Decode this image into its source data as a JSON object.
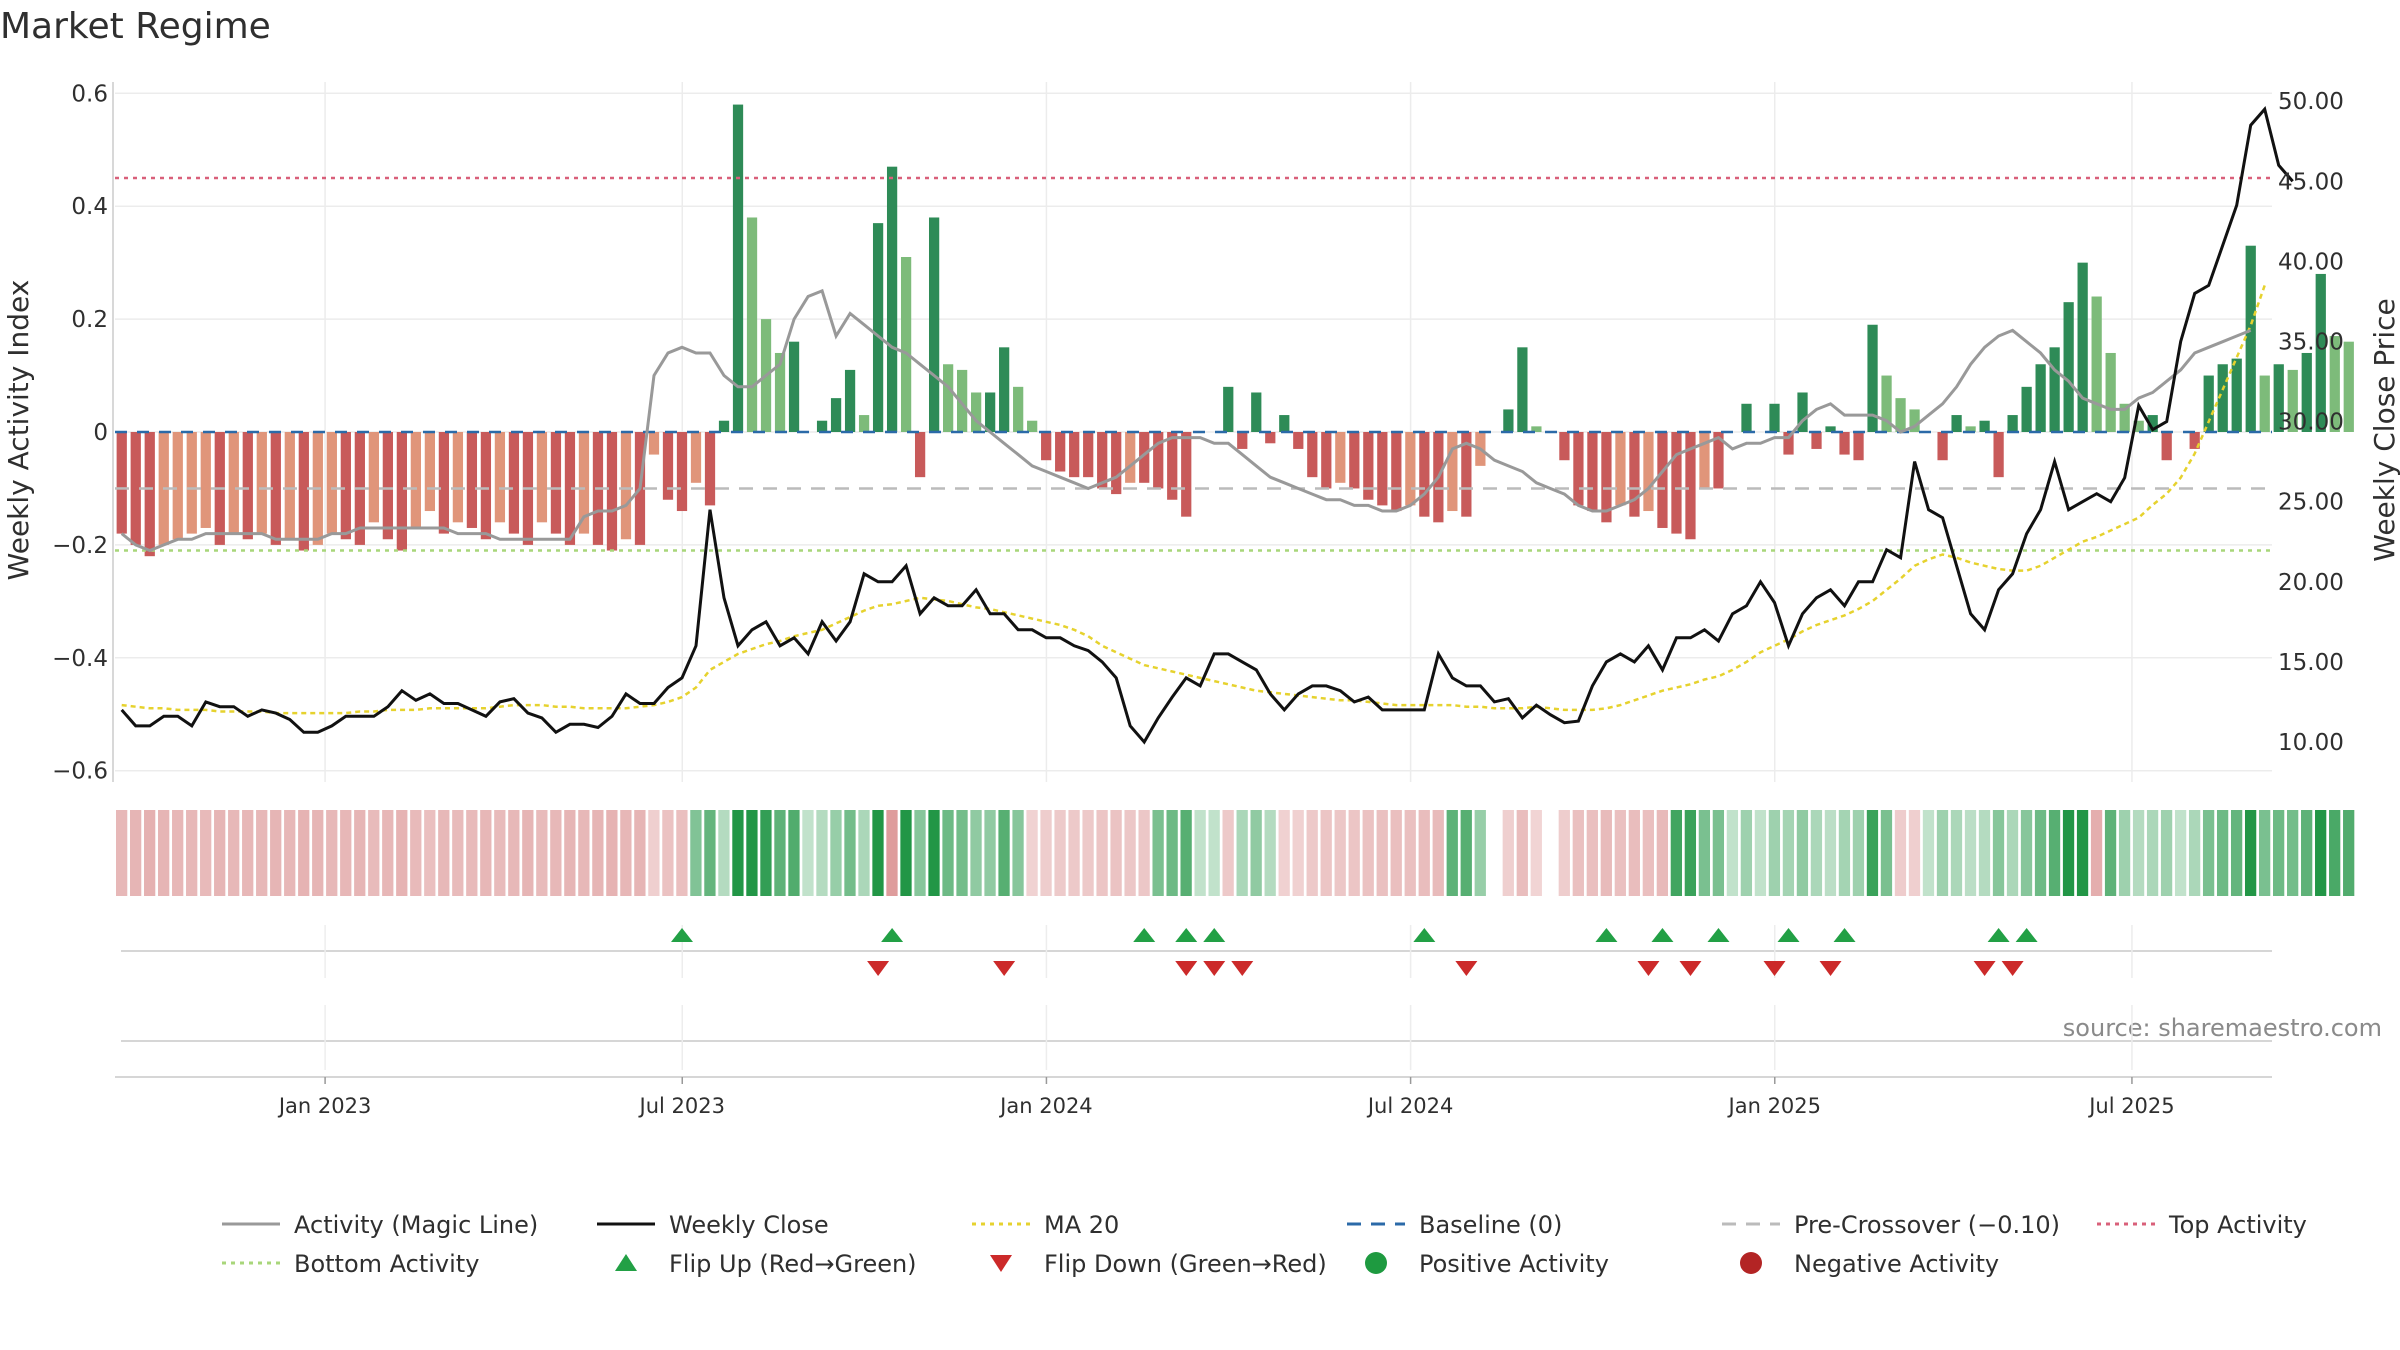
{
  "title": "Market Regime",
  "source": "source: sharemaestro.com",
  "colors": {
    "strong_pos": "#2e8b57",
    "weak_pos": "#7dbb7a",
    "strong_neg": "#c85a5a",
    "weak_neg": "#e0957a",
    "magic_line": "#999999",
    "weekly_close": "#111111",
    "ma20": "#e6d22e",
    "baseline": "#2b6aa8",
    "pre_crossover": "#bbbbbb",
    "top_activity": "#d9607a",
    "bottom_activity": "#a8d67a",
    "flip_up": "#22a045",
    "flip_down": "#cc2a2a"
  },
  "chart_data": {
    "type": "bar",
    "xlabel": "",
    "ylabel": "Weekly Activity Index",
    "y2label": "Weekly Close Price",
    "ylim": [
      -0.62,
      0.62
    ],
    "y2lim": [
      7.5,
      51.2
    ],
    "yticks": [
      "0.6",
      "0.4",
      "0.2",
      "0",
      "−0.2",
      "−0.4",
      "−0.6"
    ],
    "ytick_values": [
      0.6,
      0.4,
      0.2,
      0,
      -0.2,
      -0.4,
      -0.6
    ],
    "y2ticks": [
      "50.00",
      "45.00",
      "40.00",
      "35.00",
      "30.00",
      "25.00",
      "20.00",
      "15.00",
      "10.00"
    ],
    "y2tick_values": [
      50,
      45,
      40,
      35,
      30,
      25,
      20,
      15,
      10
    ],
    "x_range_weeks": [
      0,
      154
    ],
    "xticks": [
      {
        "label": "Jan 2023",
        "week": 15
      },
      {
        "label": "Jul 2023",
        "week": 40.5
      },
      {
        "label": "Jan 2024",
        "week": 66.5
      },
      {
        "label": "Jul 2024",
        "week": 92.5
      },
      {
        "label": "Jan 2025",
        "week": 118.5
      },
      {
        "label": "Jul 2025",
        "week": 144
      }
    ],
    "reference_lines": [
      {
        "name": "Baseline (0)",
        "value": 0
      },
      {
        "name": "Pre-Crossover (−0.10)",
        "value": -0.1
      },
      {
        "name": "Top Activity",
        "value": 0.45
      },
      {
        "name": "Bottom Activity",
        "value": -0.21
      }
    ],
    "activity_index": [
      -0.18,
      -0.2,
      -0.22,
      -0.2,
      -0.19,
      -0.18,
      -0.17,
      -0.2,
      -0.18,
      -0.19,
      -0.18,
      -0.2,
      -0.19,
      -0.21,
      -0.2,
      -0.18,
      -0.19,
      -0.2,
      -0.16,
      -0.19,
      -0.21,
      -0.17,
      -0.14,
      -0.18,
      -0.16,
      -0.17,
      -0.19,
      -0.16,
      -0.18,
      -0.2,
      -0.16,
      -0.18,
      -0.2,
      -0.18,
      -0.2,
      -0.21,
      -0.19,
      -0.2,
      -0.04,
      -0.12,
      -0.14,
      -0.09,
      -0.13,
      0.02,
      0.58,
      0.38,
      0.2,
      0.14,
      0.16,
      0.0,
      0.02,
      0.06,
      0.11,
      0.03,
      0.37,
      0.47,
      0.31,
      -0.08,
      0.38,
      0.12,
      0.11,
      0.07,
      0.07,
      0.15,
      0.08,
      0.02,
      -0.05,
      -0.07,
      -0.08,
      -0.08,
      -0.1,
      -0.11,
      -0.09,
      -0.09,
      -0.1,
      -0.12,
      -0.15,
      0.0,
      0.0,
      0.08,
      -0.03,
      0.07,
      -0.02,
      0.03,
      -0.03,
      -0.08,
      -0.1,
      -0.09,
      -0.1,
      -0.12,
      -0.13,
      -0.14,
      -0.13,
      -0.15,
      -0.16,
      -0.14,
      -0.15,
      -0.06,
      0.0,
      0.04,
      0.15,
      0.01,
      0.0,
      -0.05,
      -0.13,
      -0.14,
      -0.16,
      -0.13,
      -0.15,
      -0.14,
      -0.17,
      -0.18,
      -0.19,
      -0.1,
      -0.1,
      0.0,
      0.05,
      0.0,
      0.05,
      -0.04,
      0.07,
      -0.03,
      0.01,
      -0.04,
      -0.05,
      0.19,
      0.1,
      0.06,
      0.04,
      0.0,
      -0.05,
      0.03,
      0.01,
      0.02,
      -0.08,
      0.03,
      0.08,
      0.12,
      0.15,
      0.23,
      0.3,
      0.24,
      0.14,
      0.05,
      0.02,
      0.03,
      -0.05,
      0.0,
      -0.03,
      0.1,
      0.12,
      0.13,
      0.33,
      0.1,
      0.12,
      0.11,
      0.14,
      0.28,
      0.17,
      0.16
    ],
    "magic_line": [
      -0.18,
      -0.2,
      -0.21,
      -0.2,
      -0.19,
      -0.19,
      -0.18,
      -0.18,
      -0.18,
      -0.18,
      -0.18,
      -0.19,
      -0.19,
      -0.19,
      -0.19,
      -0.18,
      -0.18,
      -0.17,
      -0.17,
      -0.17,
      -0.17,
      -0.17,
      -0.17,
      -0.17,
      -0.18,
      -0.18,
      -0.18,
      -0.19,
      -0.19,
      -0.19,
      -0.19,
      -0.19,
      -0.19,
      -0.15,
      -0.14,
      -0.14,
      -0.13,
      -0.1,
      0.1,
      0.14,
      0.15,
      0.14,
      0.14,
      0.1,
      0.08,
      0.08,
      0.1,
      0.12,
      0.2,
      0.24,
      0.25,
      0.17,
      0.21,
      0.19,
      0.17,
      0.15,
      0.14,
      0.12,
      0.1,
      0.08,
      0.05,
      0.02,
      0.0,
      -0.02,
      -0.04,
      -0.06,
      -0.07,
      -0.08,
      -0.09,
      -0.1,
      -0.09,
      -0.08,
      -0.06,
      -0.04,
      -0.02,
      -0.01,
      -0.01,
      -0.01,
      -0.02,
      -0.02,
      -0.04,
      -0.06,
      -0.08,
      -0.09,
      -0.1,
      -0.11,
      -0.12,
      -0.12,
      -0.13,
      -0.13,
      -0.14,
      -0.14,
      -0.13,
      -0.11,
      -0.08,
      -0.03,
      -0.02,
      -0.03,
      -0.05,
      -0.06,
      -0.07,
      -0.09,
      -0.1,
      -0.11,
      -0.13,
      -0.14,
      -0.14,
      -0.13,
      -0.12,
      -0.1,
      -0.07,
      -0.04,
      -0.03,
      -0.02,
      -0.01,
      -0.03,
      -0.02,
      -0.02,
      -0.01,
      -0.01,
      0.02,
      0.04,
      0.05,
      0.03,
      0.03,
      0.03,
      0.02,
      0.0,
      0.01,
      0.03,
      0.05,
      0.08,
      0.12,
      0.15,
      0.17,
      0.18,
      0.16,
      0.14,
      0.11,
      0.09,
      0.06,
      0.05,
      0.04,
      0.04,
      0.06,
      0.07,
      0.09,
      0.11,
      0.14,
      0.15,
      0.16,
      0.17,
      0.18
    ],
    "weekly_close": [
      12.0,
      11.0,
      11.0,
      11.6,
      11.6,
      11.0,
      12.5,
      12.2,
      12.2,
      11.6,
      12.0,
      11.8,
      11.4,
      10.6,
      10.6,
      11.0,
      11.6,
      11.6,
      11.6,
      12.2,
      13.2,
      12.6,
      13.0,
      12.4,
      12.4,
      12.0,
      11.6,
      12.5,
      12.7,
      11.8,
      11.5,
      10.6,
      11.1,
      11.1,
      10.9,
      11.6,
      13.0,
      12.4,
      12.4,
      13.4,
      14.0,
      16.0,
      24.5,
      19.0,
      16.0,
      17.0,
      17.5,
      16.0,
      16.5,
      15.5,
      17.5,
      16.3,
      17.5,
      20.5,
      20.0,
      20.0,
      21.0,
      18.0,
      19.0,
      18.5,
      18.5,
      19.5,
      18.0,
      18.0,
      17.0,
      17.0,
      16.5,
      16.5,
      16.0,
      15.7,
      15.0,
      14.0,
      11.0,
      10.0,
      11.5,
      12.8,
      14.0,
      13.5,
      15.5,
      15.5,
      15.0,
      14.5,
      13.0,
      12.0,
      13.0,
      13.5,
      13.5,
      13.2,
      12.5,
      12.8,
      12.0,
      12.0,
      12.0,
      12.0,
      15.5,
      14.0,
      13.5,
      13.5,
      12.5,
      12.7,
      11.5,
      12.3,
      11.7,
      11.2,
      11.3,
      13.5,
      15.0,
      15.5,
      15.0,
      16.0,
      14.5,
      16.5,
      16.5,
      17.0,
      16.3,
      18.0,
      18.5,
      20.0,
      18.7,
      16.0,
      18.0,
      19.0,
      19.5,
      18.5,
      20.0,
      20.0,
      22.0,
      21.5,
      27.5,
      24.5,
      24.0,
      21.0,
      18.0,
      17.0,
      19.5,
      20.5,
      23.0,
      24.5,
      27.5,
      24.5,
      25.0,
      25.5,
      25.0,
      26.5,
      31.0,
      29.5,
      30.0,
      35.0,
      38.0,
      38.5,
      41.0,
      43.5,
      48.5,
      49.5,
      46.0,
      45.0
    ],
    "ma20": [
      12.3,
      12.2,
      12.1,
      12.1,
      12.0,
      12.0,
      12.0,
      11.9,
      11.9,
      11.9,
      11.9,
      11.8,
      11.8,
      11.8,
      11.8,
      11.8,
      11.8,
      11.9,
      11.9,
      12.0,
      12.0,
      12.0,
      12.1,
      12.1,
      12.1,
      12.1,
      12.1,
      12.2,
      12.3,
      12.3,
      12.3,
      12.2,
      12.2,
      12.1,
      12.1,
      12.1,
      12.1,
      12.2,
      12.3,
      12.5,
      12.8,
      13.4,
      14.5,
      15.0,
      15.5,
      15.8,
      16.1,
      16.3,
      16.6,
      16.8,
      17.0,
      17.4,
      17.8,
      18.2,
      18.5,
      18.6,
      18.8,
      19.0,
      18.9,
      18.8,
      18.6,
      18.4,
      18.3,
      18.1,
      17.9,
      17.7,
      17.5,
      17.3,
      17.0,
      16.6,
      16.0,
      15.6,
      15.2,
      14.8,
      14.6,
      14.4,
      14.2,
      14.0,
      13.8,
      13.6,
      13.4,
      13.2,
      13.1,
      13.0,
      12.9,
      12.8,
      12.7,
      12.6,
      12.6,
      12.5,
      12.4,
      12.3,
      12.3,
      12.3,
      12.3,
      12.3,
      12.2,
      12.2,
      12.1,
      12.1,
      12.1,
      12.2,
      12.1,
      12.0,
      12.0,
      12.0,
      12.1,
      12.3,
      12.6,
      12.9,
      13.2,
      13.4,
      13.6,
      13.9,
      14.1,
      14.5,
      15.0,
      15.6,
      16.0,
      16.4,
      16.9,
      17.3,
      17.6,
      17.9,
      18.3,
      18.8,
      19.5,
      20.2,
      21.0,
      21.4,
      21.7,
      21.5,
      21.2,
      21.0,
      20.8,
      20.7,
      20.7,
      21.0,
      21.5,
      22.0,
      22.5,
      22.8,
      23.2,
      23.6,
      24.0,
      24.8,
      25.5,
      26.5,
      28.0,
      30.0,
      32.0,
      34.0,
      36.0,
      38.5
    ],
    "regime_strip_positive": [
      false,
      false,
      false,
      false,
      false,
      false,
      false,
      false,
      false,
      false,
      false,
      false,
      false,
      false,
      false,
      false,
      false,
      false,
      false,
      false,
      false,
      false,
      false,
      false,
      false,
      false,
      false,
      false,
      false,
      false,
      false,
      false,
      false,
      false,
      false,
      false,
      false,
      false,
      false,
      false,
      false,
      true,
      true,
      true,
      true,
      true,
      true,
      true,
      true,
      true,
      true,
      true,
      true,
      true,
      true,
      false,
      true,
      true,
      true,
      true,
      true,
      true,
      true,
      true,
      true,
      false,
      false,
      false,
      false,
      false,
      false,
      false,
      false,
      false,
      true,
      true,
      true,
      true,
      true,
      false,
      true,
      true,
      true,
      false,
      false,
      false,
      false,
      false,
      false,
      false,
      false,
      false,
      false,
      false,
      false,
      true,
      true,
      true,
      false,
      false,
      false,
      false,
      false,
      false,
      false,
      false,
      false,
      false,
      false,
      false,
      false,
      true,
      true,
      true,
      true,
      true,
      true,
      true,
      true,
      true,
      true,
      true,
      true,
      true,
      true,
      true,
      true,
      false,
      false,
      true,
      true,
      true,
      true,
      true,
      true,
      true,
      true,
      true,
      true,
      true,
      true,
      false,
      true,
      true,
      true,
      true,
      true,
      true,
      true,
      true,
      true,
      true,
      true,
      true,
      true,
      true,
      true,
      true,
      true,
      true
    ],
    "flip_up_weeks": [
      40,
      55,
      73,
      76,
      78,
      93,
      106,
      110,
      114,
      119,
      123,
      134,
      136
    ],
    "flip_down_weeks": [
      54,
      63,
      76,
      78,
      80,
      96,
      109,
      112,
      118,
      122,
      133,
      135
    ],
    "legend": [
      "Activity (Magic Line)",
      "Weekly Close",
      "MA 20",
      "Baseline (0)",
      "Pre-Crossover (−0.10)",
      "Top Activity",
      "Bottom Activity",
      "Flip Up (Red→Green)",
      "Flip Down (Green→Red)",
      "Positive Activity",
      "Negative Activity"
    ]
  }
}
